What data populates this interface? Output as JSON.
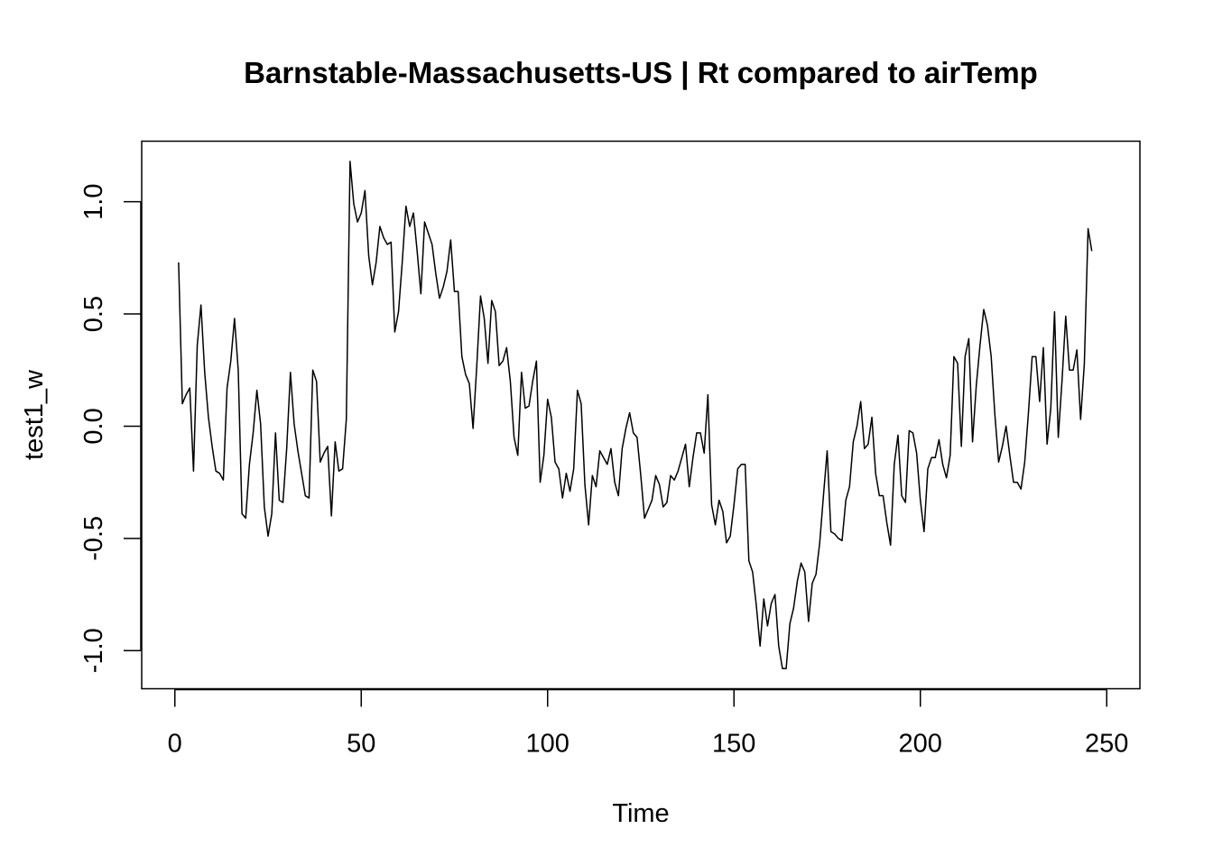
{
  "chart_data": {
    "type": "line",
    "title": "Barnstable-Massachusetts-US | Rt compared to airTemp",
    "xlabel": "Time",
    "ylabel": "test1_w",
    "xlim": [
      -8.9,
      258.9
    ],
    "ylim": [
      -1.17,
      1.27
    ],
    "x_ticks": [
      0,
      50,
      100,
      150,
      200,
      250
    ],
    "y_ticks": [
      -1.0,
      -0.5,
      0.0,
      0.5,
      1.0
    ],
    "x_tick_labels": [
      "0",
      "50",
      "100",
      "150",
      "200",
      "250"
    ],
    "y_tick_labels": [
      "-1.0",
      "-0.5",
      "0.0",
      "0.5",
      "1.0"
    ],
    "grid": false,
    "legend": "none",
    "line_color": "#000000",
    "x_start": 1,
    "values": [
      0.73,
      0.1,
      0.14,
      0.17,
      -0.2,
      0.36,
      0.54,
      0.24,
      0.04,
      -0.09,
      -0.2,
      -0.21,
      -0.24,
      0.17,
      0.29,
      0.48,
      0.25,
      -0.39,
      -0.41,
      -0.17,
      -0.03,
      0.16,
      0.01,
      -0.36,
      -0.49,
      -0.39,
      -0.03,
      -0.33,
      -0.34,
      -0.1,
      0.24,
      0.01,
      -0.11,
      -0.21,
      -0.31,
      -0.32,
      0.25,
      0.2,
      -0.16,
      -0.12,
      -0.09,
      -0.4,
      -0.07,
      -0.2,
      -0.19,
      0.03,
      1.18,
      0.99,
      0.91,
      0.95,
      1.05,
      0.76,
      0.63,
      0.73,
      0.89,
      0.84,
      0.81,
      0.82,
      0.42,
      0.51,
      0.73,
      0.98,
      0.89,
      0.95,
      0.78,
      0.59,
      0.91,
      0.86,
      0.81,
      0.68,
      0.57,
      0.62,
      0.69,
      0.83,
      0.6,
      0.6,
      0.31,
      0.23,
      0.19,
      -0.01,
      0.27,
      0.58,
      0.48,
      0.28,
      0.56,
      0.51,
      0.27,
      0.29,
      0.35,
      0.2,
      -0.05,
      -0.13,
      0.24,
      0.08,
      0.09,
      0.2,
      0.29,
      -0.25,
      -0.13,
      0.12,
      0.04,
      -0.16,
      -0.19,
      -0.32,
      -0.21,
      -0.29,
      -0.19,
      0.16,
      0.1,
      -0.26,
      -0.44,
      -0.22,
      -0.27,
      -0.11,
      -0.14,
      -0.17,
      -0.1,
      -0.25,
      -0.31,
      -0.1,
      -0.01,
      0.06,
      -0.03,
      -0.05,
      -0.22,
      -0.41,
      -0.37,
      -0.33,
      -0.22,
      -0.26,
      -0.36,
      -0.34,
      -0.22,
      -0.24,
      -0.2,
      -0.14,
      -0.08,
      -0.27,
      -0.14,
      -0.03,
      -0.03,
      -0.12,
      0.14,
      -0.35,
      -0.44,
      -0.33,
      -0.38,
      -0.52,
      -0.49,
      -0.35,
      -0.19,
      -0.17,
      -0.17,
      -0.6,
      -0.65,
      -0.8,
      -0.98,
      -0.77,
      -0.89,
      -0.79,
      -0.75,
      -0.98,
      -1.08,
      -1.08,
      -0.88,
      -0.81,
      -0.69,
      -0.61,
      -0.65,
      -0.87,
      -0.7,
      -0.66,
      -0.52,
      -0.31,
      -0.11,
      -0.47,
      -0.48,
      -0.5,
      -0.51,
      -0.33,
      -0.27,
      -0.07,
      0.0,
      0.11,
      -0.1,
      -0.08,
      0.04,
      -0.21,
      -0.31,
      -0.31,
      -0.43,
      -0.53,
      -0.17,
      -0.04,
      -0.31,
      -0.34,
      -0.02,
      -0.03,
      -0.12,
      -0.33,
      -0.47,
      -0.19,
      -0.14,
      -0.14,
      -0.06,
      -0.17,
      -0.23,
      -0.13,
      0.31,
      0.28,
      -0.09,
      0.31,
      0.39,
      -0.07,
      0.18,
      0.36,
      0.52,
      0.45,
      0.31,
      0.05,
      -0.16,
      -0.09,
      0.0,
      -0.13,
      -0.25,
      -0.25,
      -0.28,
      -0.16,
      0.06,
      0.31,
      0.31,
      0.11,
      0.35,
      -0.08,
      0.08,
      0.51,
      -0.05,
      0.2,
      0.49,
      0.25,
      0.25,
      0.34,
      0.03,
      0.28,
      0.88,
      0.78
    ]
  }
}
